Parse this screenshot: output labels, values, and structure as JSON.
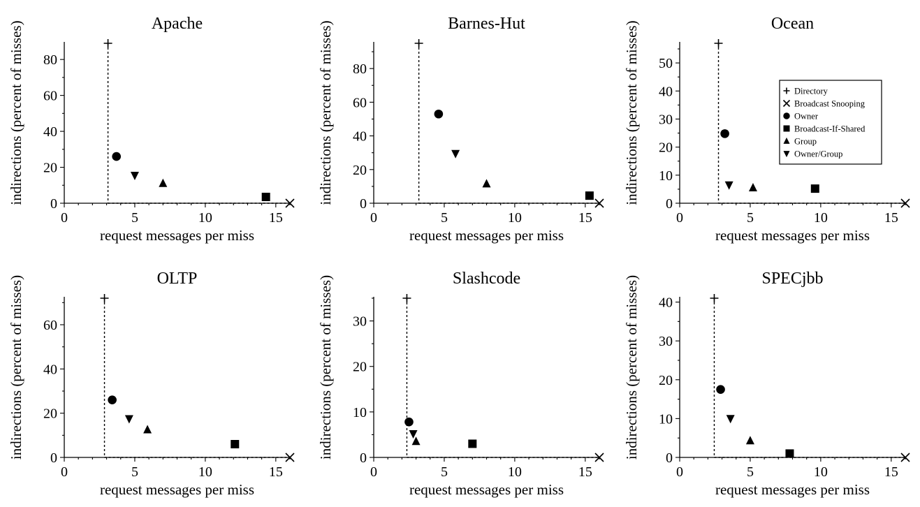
{
  "chart_data": [
    {
      "type": "scatter",
      "title": "Apache",
      "xlabel": "request messages per miss",
      "ylabel": "indirections (percent of misses)",
      "xlim": [
        0,
        16
      ],
      "ylim": [
        0,
        89
      ],
      "xticks": [
        0,
        5,
        10,
        15
      ],
      "yticks": [
        0,
        20,
        40,
        60,
        80
      ],
      "directory_line_x": 3.1,
      "series": [
        {
          "name": "Directory",
          "x": 3.1,
          "y": 89
        },
        {
          "name": "Broadcast Snooping",
          "x": 16,
          "y": 0
        },
        {
          "name": "Owner",
          "x": 3.7,
          "y": 26
        },
        {
          "name": "Broadcast-If-Shared",
          "x": 14.3,
          "y": 3.5
        },
        {
          "name": "Group",
          "x": 7.0,
          "y": 11
        },
        {
          "name": "Owner/Group",
          "x": 5.0,
          "y": 15.5
        }
      ]
    },
    {
      "type": "scatter",
      "title": "Barnes-Hut",
      "xlabel": "request messages per miss",
      "ylabel": "indirections (percent of misses)",
      "xlim": [
        0,
        16
      ],
      "ylim": [
        0,
        95
      ],
      "xticks": [
        0,
        5,
        10,
        15
      ],
      "yticks": [
        0,
        20,
        40,
        60,
        80
      ],
      "directory_line_x": 3.2,
      "series": [
        {
          "name": "Directory",
          "x": 3.2,
          "y": 95
        },
        {
          "name": "Broadcast Snooping",
          "x": 16,
          "y": 0
        },
        {
          "name": "Owner",
          "x": 4.6,
          "y": 53
        },
        {
          "name": "Broadcast-If-Shared",
          "x": 15.3,
          "y": 4.5
        },
        {
          "name": "Group",
          "x": 8.0,
          "y": 11.5
        },
        {
          "name": "Owner/Group",
          "x": 5.8,
          "y": 29.5
        }
      ]
    },
    {
      "type": "scatter",
      "title": "Ocean",
      "xlabel": "request messages per miss",
      "ylabel": "indirections (percent of misses)",
      "xlim": [
        0,
        16
      ],
      "ylim": [
        0,
        57
      ],
      "xticks": [
        0,
        5,
        10,
        15
      ],
      "yticks": [
        0,
        10,
        20,
        30,
        40,
        50
      ],
      "directory_line_x": 2.75,
      "legend_position": "top-right",
      "series": [
        {
          "name": "Directory",
          "x": 2.75,
          "y": 57
        },
        {
          "name": "Broadcast Snooping",
          "x": 16,
          "y": 0
        },
        {
          "name": "Owner",
          "x": 3.2,
          "y": 24.8
        },
        {
          "name": "Broadcast-If-Shared",
          "x": 9.6,
          "y": 5.2
        },
        {
          "name": "Group",
          "x": 5.2,
          "y": 5.5
        },
        {
          "name": "Owner/Group",
          "x": 3.5,
          "y": 6.5
        }
      ]
    },
    {
      "type": "scatter",
      "title": "OLTP",
      "xlabel": "request messages per miss",
      "ylabel": "indirections (percent of misses)",
      "xlim": [
        0,
        16
      ],
      "ylim": [
        0,
        72
      ],
      "xticks": [
        0,
        5,
        10,
        15
      ],
      "yticks": [
        0,
        20,
        40,
        60
      ],
      "directory_line_x": 2.85,
      "series": [
        {
          "name": "Directory",
          "x": 2.85,
          "y": 72
        },
        {
          "name": "Broadcast Snooping",
          "x": 16,
          "y": 0
        },
        {
          "name": "Owner",
          "x": 3.4,
          "y": 26
        },
        {
          "name": "Broadcast-If-Shared",
          "x": 12.1,
          "y": 6
        },
        {
          "name": "Group",
          "x": 5.9,
          "y": 12.5
        },
        {
          "name": "Owner/Group",
          "x": 4.6,
          "y": 17.5
        }
      ]
    },
    {
      "type": "scatter",
      "title": "Slashcode",
      "xlabel": "request messages per miss",
      "ylabel": "indirections (percent of misses)",
      "xlim": [
        0,
        16
      ],
      "ylim": [
        0,
        35
      ],
      "xticks": [
        0,
        5,
        10,
        15
      ],
      "yticks": [
        0,
        10,
        20,
        30
      ],
      "directory_line_x": 2.35,
      "series": [
        {
          "name": "Directory",
          "x": 2.35,
          "y": 35
        },
        {
          "name": "Broadcast Snooping",
          "x": 16,
          "y": 0
        },
        {
          "name": "Owner",
          "x": 2.5,
          "y": 7.8
        },
        {
          "name": "Broadcast-If-Shared",
          "x": 7.0,
          "y": 3
        },
        {
          "name": "Group",
          "x": 3.0,
          "y": 3.5
        },
        {
          "name": "Owner/Group",
          "x": 2.8,
          "y": 5.2
        }
      ]
    },
    {
      "type": "scatter",
      "title": "SPECjbb",
      "xlabel": "request messages per miss",
      "ylabel": "indirections (percent of misses)",
      "xlim": [
        0,
        16
      ],
      "ylim": [
        0,
        41
      ],
      "xticks": [
        0,
        5,
        10,
        15
      ],
      "yticks": [
        0,
        10,
        20,
        30,
        40
      ],
      "directory_line_x": 2.45,
      "series": [
        {
          "name": "Directory",
          "x": 2.45,
          "y": 41
        },
        {
          "name": "Broadcast Snooping",
          "x": 16,
          "y": 0
        },
        {
          "name": "Owner",
          "x": 2.9,
          "y": 17.5
        },
        {
          "name": "Broadcast-If-Shared",
          "x": 7.8,
          "y": 1
        },
        {
          "name": "Group",
          "x": 5.0,
          "y": 4.3
        },
        {
          "name": "Owner/Group",
          "x": 3.6,
          "y": 10
        }
      ]
    }
  ],
  "legend": {
    "entries": [
      {
        "name": "Directory",
        "marker": "plus"
      },
      {
        "name": "Broadcast Snooping",
        "marker": "cross"
      },
      {
        "name": "Owner",
        "marker": "circle"
      },
      {
        "name": "Broadcast-If-Shared",
        "marker": "square"
      },
      {
        "name": "Group",
        "marker": "triangle-up"
      },
      {
        "name": "Owner/Group",
        "marker": "triangle-down"
      }
    ]
  },
  "colors": {
    "ink": "#000000",
    "background": "#ffffff"
  }
}
